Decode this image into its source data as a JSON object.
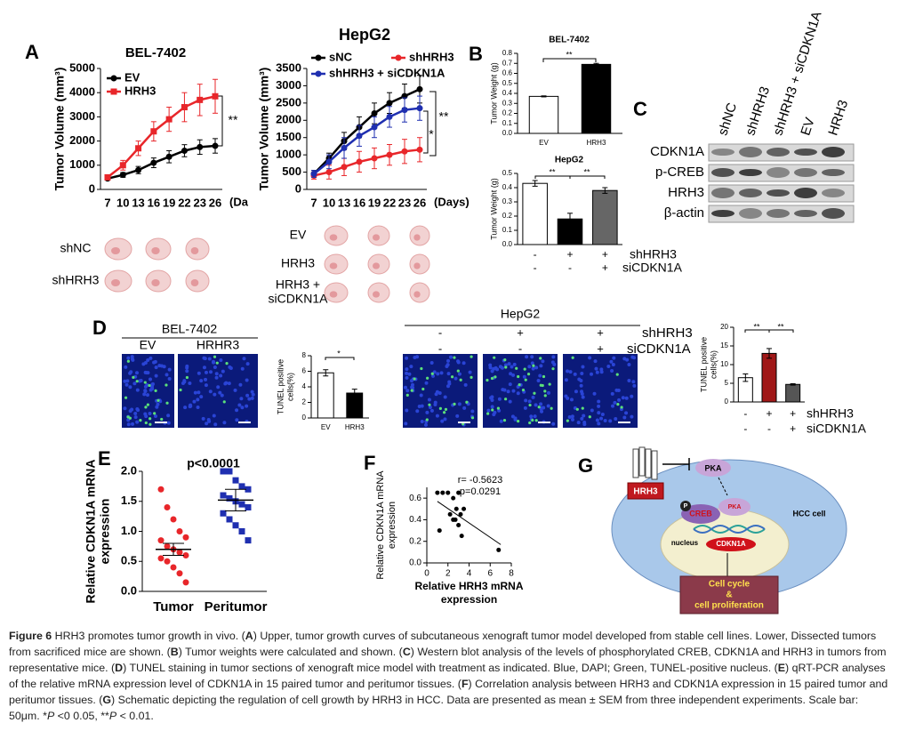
{
  "panel_labels": [
    "A",
    "B",
    "C",
    "D",
    "E",
    "F",
    "G"
  ],
  "chart_data": [
    {
      "type": "line",
      "title": "BEL-7402",
      "categories": [
        "7",
        "10",
        "13",
        "16",
        "19",
        "22",
        "23",
        "26"
      ],
      "xlabel": "(Da",
      "ylabel": "Tumor Volume (mm³)",
      "ylim": [
        0,
        5000
      ],
      "yticks": [
        0,
        1000,
        2000,
        3000,
        4000,
        5000
      ],
      "series": [
        {
          "name": "EV",
          "color": "#000000",
          "marker": "circle",
          "values": [
            450,
            600,
            800,
            1100,
            1350,
            1600,
            1750,
            1800
          ],
          "errors": [
            50,
            100,
            150,
            200,
            250,
            250,
            300,
            300
          ]
        },
        {
          "name": "HRH3",
          "color": "#e8262a",
          "marker": "square",
          "values": [
            500,
            1000,
            1700,
            2400,
            2900,
            3400,
            3700,
            3850
          ],
          "errors": [
            100,
            200,
            300,
            400,
            500,
            600,
            650,
            700
          ]
        }
      ],
      "annotations": [
        "**"
      ]
    },
    {
      "type": "line",
      "title": "HepG2",
      "categories": [
        "7",
        "10",
        "13",
        "16",
        "19",
        "22",
        "23",
        "26"
      ],
      "xlabel": "(Days)",
      "ylabel": "Tumor Volume (mm³)",
      "ylim": [
        0,
        3500
      ],
      "yticks": [
        0,
        500,
        1000,
        1500,
        2000,
        2500,
        3000,
        3500
      ],
      "series": [
        {
          "name": "sNC",
          "color": "#000000",
          "marker": "circle",
          "values": [
            450,
            900,
            1400,
            1800,
            2200,
            2500,
            2700,
            2900
          ],
          "errors": [
            100,
            150,
            250,
            300,
            300,
            300,
            350,
            400
          ]
        },
        {
          "name": "shHRH3",
          "color": "#e8262a",
          "marker": "circle",
          "values": [
            400,
            500,
            650,
            800,
            900,
            1000,
            1100,
            1150
          ],
          "errors": [
            100,
            200,
            250,
            300,
            300,
            300,
            350,
            350
          ]
        },
        {
          "name": "shHRH3 + siCDKN1A",
          "color": "#1f2fb0",
          "marker": "circle",
          "values": [
            450,
            800,
            1200,
            1550,
            1800,
            2100,
            2300,
            2350
          ],
          "errors": [
            100,
            200,
            300,
            300,
            300,
            300,
            350,
            350
          ]
        }
      ],
      "annotations": [
        "*",
        "**"
      ]
    },
    {
      "type": "bar",
      "title": "BEL-7402",
      "categories": [
        "EV",
        "HRH3"
      ],
      "values": [
        0.37,
        0.69
      ],
      "errors": [
        0.005,
        0.01
      ],
      "colors": [
        "#ffffff",
        "#000000"
      ],
      "ylabel": "Tumor Weight (g)",
      "ylim": [
        0,
        0.8
      ],
      "yticks": [
        {
          "value": 0,
          "label": "0.0"
        },
        0.1,
        0.2,
        0.3,
        0.4,
        0.5,
        0.6,
        0.7,
        0.8
      ],
      "annotations": [
        "**"
      ]
    },
    {
      "type": "bar",
      "title": "HepG2",
      "categories": [
        null,
        null,
        null
      ],
      "values": [
        0.43,
        0.18,
        0.38
      ],
      "errors": [
        0.02,
        0.04,
        0.02
      ],
      "colors": [
        "#ffffff",
        "#000000",
        "#666666"
      ],
      "ylabel": "Tumor Weight (g)",
      "ylim": [
        0,
        0.5
      ],
      "yticks": [
        {
          "value": 0,
          "label": "0.0"
        },
        0.1,
        0.2,
        0.3,
        0.4,
        0.5
      ],
      "annotations": [
        "**",
        "**"
      ],
      "conditions": [
        {
          "name": "shHRH3",
          "signs": [
            "-",
            "+",
            "+"
          ]
        },
        {
          "name": "siCDKN1A",
          "signs": [
            "-",
            "-",
            "+"
          ]
        }
      ]
    },
    {
      "type": "bar",
      "categories": [
        "EV",
        "HRH3"
      ],
      "values": [
        5.8,
        3.2
      ],
      "errors": [
        0.4,
        0.5
      ],
      "colors": [
        "#ffffff",
        "#000000"
      ],
      "ylabel": [
        "TUNEL positive",
        "cells(%)"
      ],
      "ylim": [
        0,
        8
      ],
      "yticks": [
        0,
        2,
        4,
        6,
        8
      ],
      "annotations": [
        "*"
      ]
    },
    {
      "type": "bar",
      "categories": [
        null,
        null,
        null
      ],
      "values": [
        6.5,
        13,
        4.7
      ],
      "errors": [
        1,
        1.3,
        0.2
      ],
      "colors": [
        "#ffffff",
        "#a01818",
        "#555555"
      ],
      "ylabel": [
        "TUNEL positive",
        "cells(%)"
      ],
      "ylim": [
        0,
        20
      ],
      "yticks": [
        0,
        5,
        10,
        15,
        20
      ],
      "annotations": [
        "**",
        "**"
      ],
      "conditions": [
        {
          "name": "shHRH3",
          "signs": [
            "-",
            "+",
            "+"
          ]
        },
        {
          "name": "siCDKN1A",
          "signs": [
            "-",
            "-",
            "+"
          ]
        }
      ]
    },
    {
      "type": "strip",
      "title": "p<0.0001",
      "ylabel": [
        "Relative CDKN1A  mRNA",
        "expression"
      ],
      "ylim": [
        0,
        2
      ],
      "yticks": [
        {
          "value": 0,
          "label": "0.0"
        },
        0.5,
        {
          "value": 1,
          "label": "1.0"
        },
        1.5,
        {
          "value": 2,
          "label": "2.0"
        }
      ],
      "series": [
        {
          "name": "Tumor",
          "color": "#e8262a",
          "marker": "circle",
          "values": [
            1.7,
            1.4,
            1.2,
            1.0,
            0.9,
            0.85,
            0.75,
            0.7,
            0.65,
            0.6,
            0.55,
            0.5,
            0.4,
            0.3,
            0.15
          ],
          "mean": 0.7,
          "error": 0.1
        },
        {
          "name": "Peritumor",
          "color": "#1f2fb0",
          "marker": "square",
          "values": [
            2.0,
            2.0,
            1.85,
            1.75,
            1.7,
            1.6,
            1.55,
            1.5,
            1.45,
            1.4,
            1.3,
            1.2,
            1.1,
            1.0,
            0.85
          ],
          "mean": 1.52,
          "error": 0.18
        }
      ]
    },
    {
      "type": "scatter",
      "xlabel": [
        "Relative HRH3 mRNA",
        "expression"
      ],
      "ylabel": [
        "Relative CDKN1A mRNA",
        "expression"
      ],
      "xlim": [
        0,
        8
      ],
      "xticks": [
        0,
        2,
        4,
        6,
        8
      ],
      "ylim": [
        0,
        0.7
      ],
      "yticks": [
        {
          "value": 0,
          "label": "0.0"
        },
        0.2,
        0.4,
        0.6
      ],
      "x": [
        1,
        1.5,
        2,
        2.5,
        3,
        3.2,
        2.8,
        2.2,
        3.5,
        3,
        2.5,
        1.2,
        3.3,
        2.7,
        6.8
      ],
      "y": [
        0.65,
        0.65,
        0.65,
        0.6,
        0.65,
        0.45,
        0.5,
        0.45,
        0.5,
        0.35,
        0.4,
        0.3,
        0.25,
        0.4,
        0.12
      ],
      "fit": {
        "x": [
          1,
          7
        ],
        "y": [
          0.57,
          0.17
        ]
      },
      "color": "#000000",
      "annotations": [
        "r= -0.5623",
        "p=0.0291"
      ]
    }
  ],
  "tumor_photos": {
    "left": [
      [
        "shNC"
      ],
      [
        "shHRH3"
      ]
    ],
    "right": [
      [
        "EV"
      ],
      [
        "HRH3"
      ],
      [
        "HRH3 +",
        "siCDKN1A"
      ]
    ]
  },
  "western_blot": {
    "lanes": [
      "shNC",
      "shHRH3",
      "shHRH3 + siCDKN1A",
      "EV",
      "HRH3"
    ],
    "rows": [
      "CDKN1A",
      "p-CREB",
      "HRH3",
      "β-actin"
    ]
  },
  "tunel": {
    "left": {
      "title": "BEL-7402",
      "labels": [
        "EV",
        "HRHR3"
      ]
    },
    "right": {
      "title": "HepG2",
      "conditions": [
        {
          "name": "shHRH3",
          "signs": [
            "-",
            "+",
            "+"
          ]
        },
        {
          "name": "siCDKN1A",
          "signs": [
            "-",
            "-",
            "+"
          ]
        }
      ]
    }
  },
  "diagram": {
    "labels": [
      "PKA",
      "HRH3",
      "P",
      "CREB",
      "PKA",
      "nucleus",
      "CDKN1A",
      "HCC cell",
      "Cell cycle",
      "&",
      "cell proliferation"
    ]
  },
  "caption": [
    {
      "text": "Figure 6",
      "bold": true
    },
    {
      "text": " HRH3 promotes tumor growth in vivo. ("
    },
    {
      "text": "A",
      "bold": true
    },
    {
      "text": ") Upper, tumor growth curves of subcutaneous xenograft tumor model developed from stable cell lines. Lower, Dissected tumors from sacrificed mice are shown. ("
    },
    {
      "text": "B",
      "bold": true
    },
    {
      "text": ") Tumor weights were calculated and shown. ("
    },
    {
      "text": "C",
      "bold": true
    },
    {
      "text": ") Western blot analysis of the levels of phosphorylated CREB, CDKN1A and HRH3 in tumors from representative mice. ("
    },
    {
      "text": "D",
      "bold": true
    },
    {
      "text": ") TUNEL staining in tumor sections of xenograft mice model with treatment as indicated. Blue, DAPI; Green, TUNEL-positive nucleus. ("
    },
    {
      "text": "E",
      "bold": true
    },
    {
      "text": ") qRT-PCR analyses of the relative mRNA expression level of CDKN1A in 15 paired tumor and peritumor tissues. ("
    },
    {
      "text": "F",
      "bold": true
    },
    {
      "text": ") Correlation analysis between HRH3 and CDKN1A expression in 15 paired tumor and peritumor tissues. ("
    },
    {
      "text": "G",
      "bold": true
    },
    {
      "text": ") Schematic depicting the regulation of cell growth by HRH3 in HCC. Data are presented as mean ± SEM from three independent experiments. Scale bar: 50μm. *"
    },
    {
      "text": "P",
      "italic": true
    },
    {
      "text": " <0 0.05, **"
    },
    {
      "text": "P",
      "italic": true
    },
    {
      "text": " < 0.01."
    }
  ]
}
